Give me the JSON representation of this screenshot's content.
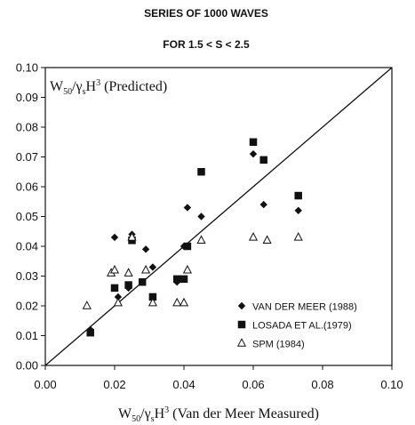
{
  "chart_data": {
    "type": "scatter",
    "title": "SERIES OF 1000 WAVES",
    "subtitle": "FOR 1.5 < S < 2.5",
    "ylabel_inside": {
      "base": "W",
      "sub1": "50",
      "mid": "/γ",
      "sub2": "s",
      "mid2": "H",
      "sup": "3",
      "tail": " (Predicted)"
    },
    "xlabel": {
      "base": "W",
      "sub1": "50",
      "mid": "/γ",
      "sub2": "s",
      "mid2": "H",
      "sup": "3",
      "tail": " (Van der Meer Measured)"
    },
    "xlim": [
      0.0,
      0.1
    ],
    "ylim": [
      0.0,
      0.1
    ],
    "x_ticks": [
      "0.00",
      "0.02",
      "0.04",
      "0.06",
      "0.08",
      "0.10"
    ],
    "y_ticks": [
      "0.00",
      "0.01",
      "0.02",
      "0.03",
      "0.04",
      "0.05",
      "0.06",
      "0.07",
      "0.08",
      "0.09",
      "0.10"
    ],
    "grid": false,
    "reference_line": {
      "from": [
        0.0,
        0.0
      ],
      "to": [
        0.1,
        0.1
      ]
    },
    "legend_position": "bottom-right",
    "series": [
      {
        "name": "VAN DER MEER (1988)",
        "marker": "diamond",
        "points": [
          [
            0.013,
            0.012
          ],
          [
            0.02,
            0.043
          ],
          [
            0.021,
            0.023
          ],
          [
            0.024,
            0.026
          ],
          [
            0.025,
            0.044
          ],
          [
            0.029,
            0.039
          ],
          [
            0.031,
            0.033
          ],
          [
            0.038,
            0.028
          ],
          [
            0.04,
            0.04
          ],
          [
            0.041,
            0.053
          ],
          [
            0.045,
            0.05
          ],
          [
            0.06,
            0.071
          ],
          [
            0.063,
            0.054
          ],
          [
            0.073,
            0.052
          ]
        ]
      },
      {
        "name": "LOSADA ET AL.(1979)",
        "marker": "square",
        "points": [
          [
            0.013,
            0.011
          ],
          [
            0.02,
            0.026
          ],
          [
            0.024,
            0.027
          ],
          [
            0.025,
            0.042
          ],
          [
            0.028,
            0.028
          ],
          [
            0.031,
            0.023
          ],
          [
            0.038,
            0.029
          ],
          [
            0.04,
            0.029
          ],
          [
            0.041,
            0.04
          ],
          [
            0.045,
            0.065
          ],
          [
            0.06,
            0.075
          ],
          [
            0.063,
            0.069
          ],
          [
            0.073,
            0.057
          ]
        ]
      },
      {
        "name": "SPM (1984)",
        "marker": "triangle-open",
        "points": [
          [
            0.012,
            0.02
          ],
          [
            0.019,
            0.031
          ],
          [
            0.02,
            0.032
          ],
          [
            0.021,
            0.021
          ],
          [
            0.024,
            0.031
          ],
          [
            0.025,
            0.043
          ],
          [
            0.029,
            0.032
          ],
          [
            0.031,
            0.021
          ],
          [
            0.038,
            0.021
          ],
          [
            0.04,
            0.021
          ],
          [
            0.041,
            0.032
          ],
          [
            0.045,
            0.042
          ],
          [
            0.06,
            0.043
          ],
          [
            0.064,
            0.042
          ],
          [
            0.073,
            0.043
          ]
        ]
      }
    ],
    "colors": {
      "ink": "#111111",
      "background": "#ffffff"
    }
  }
}
